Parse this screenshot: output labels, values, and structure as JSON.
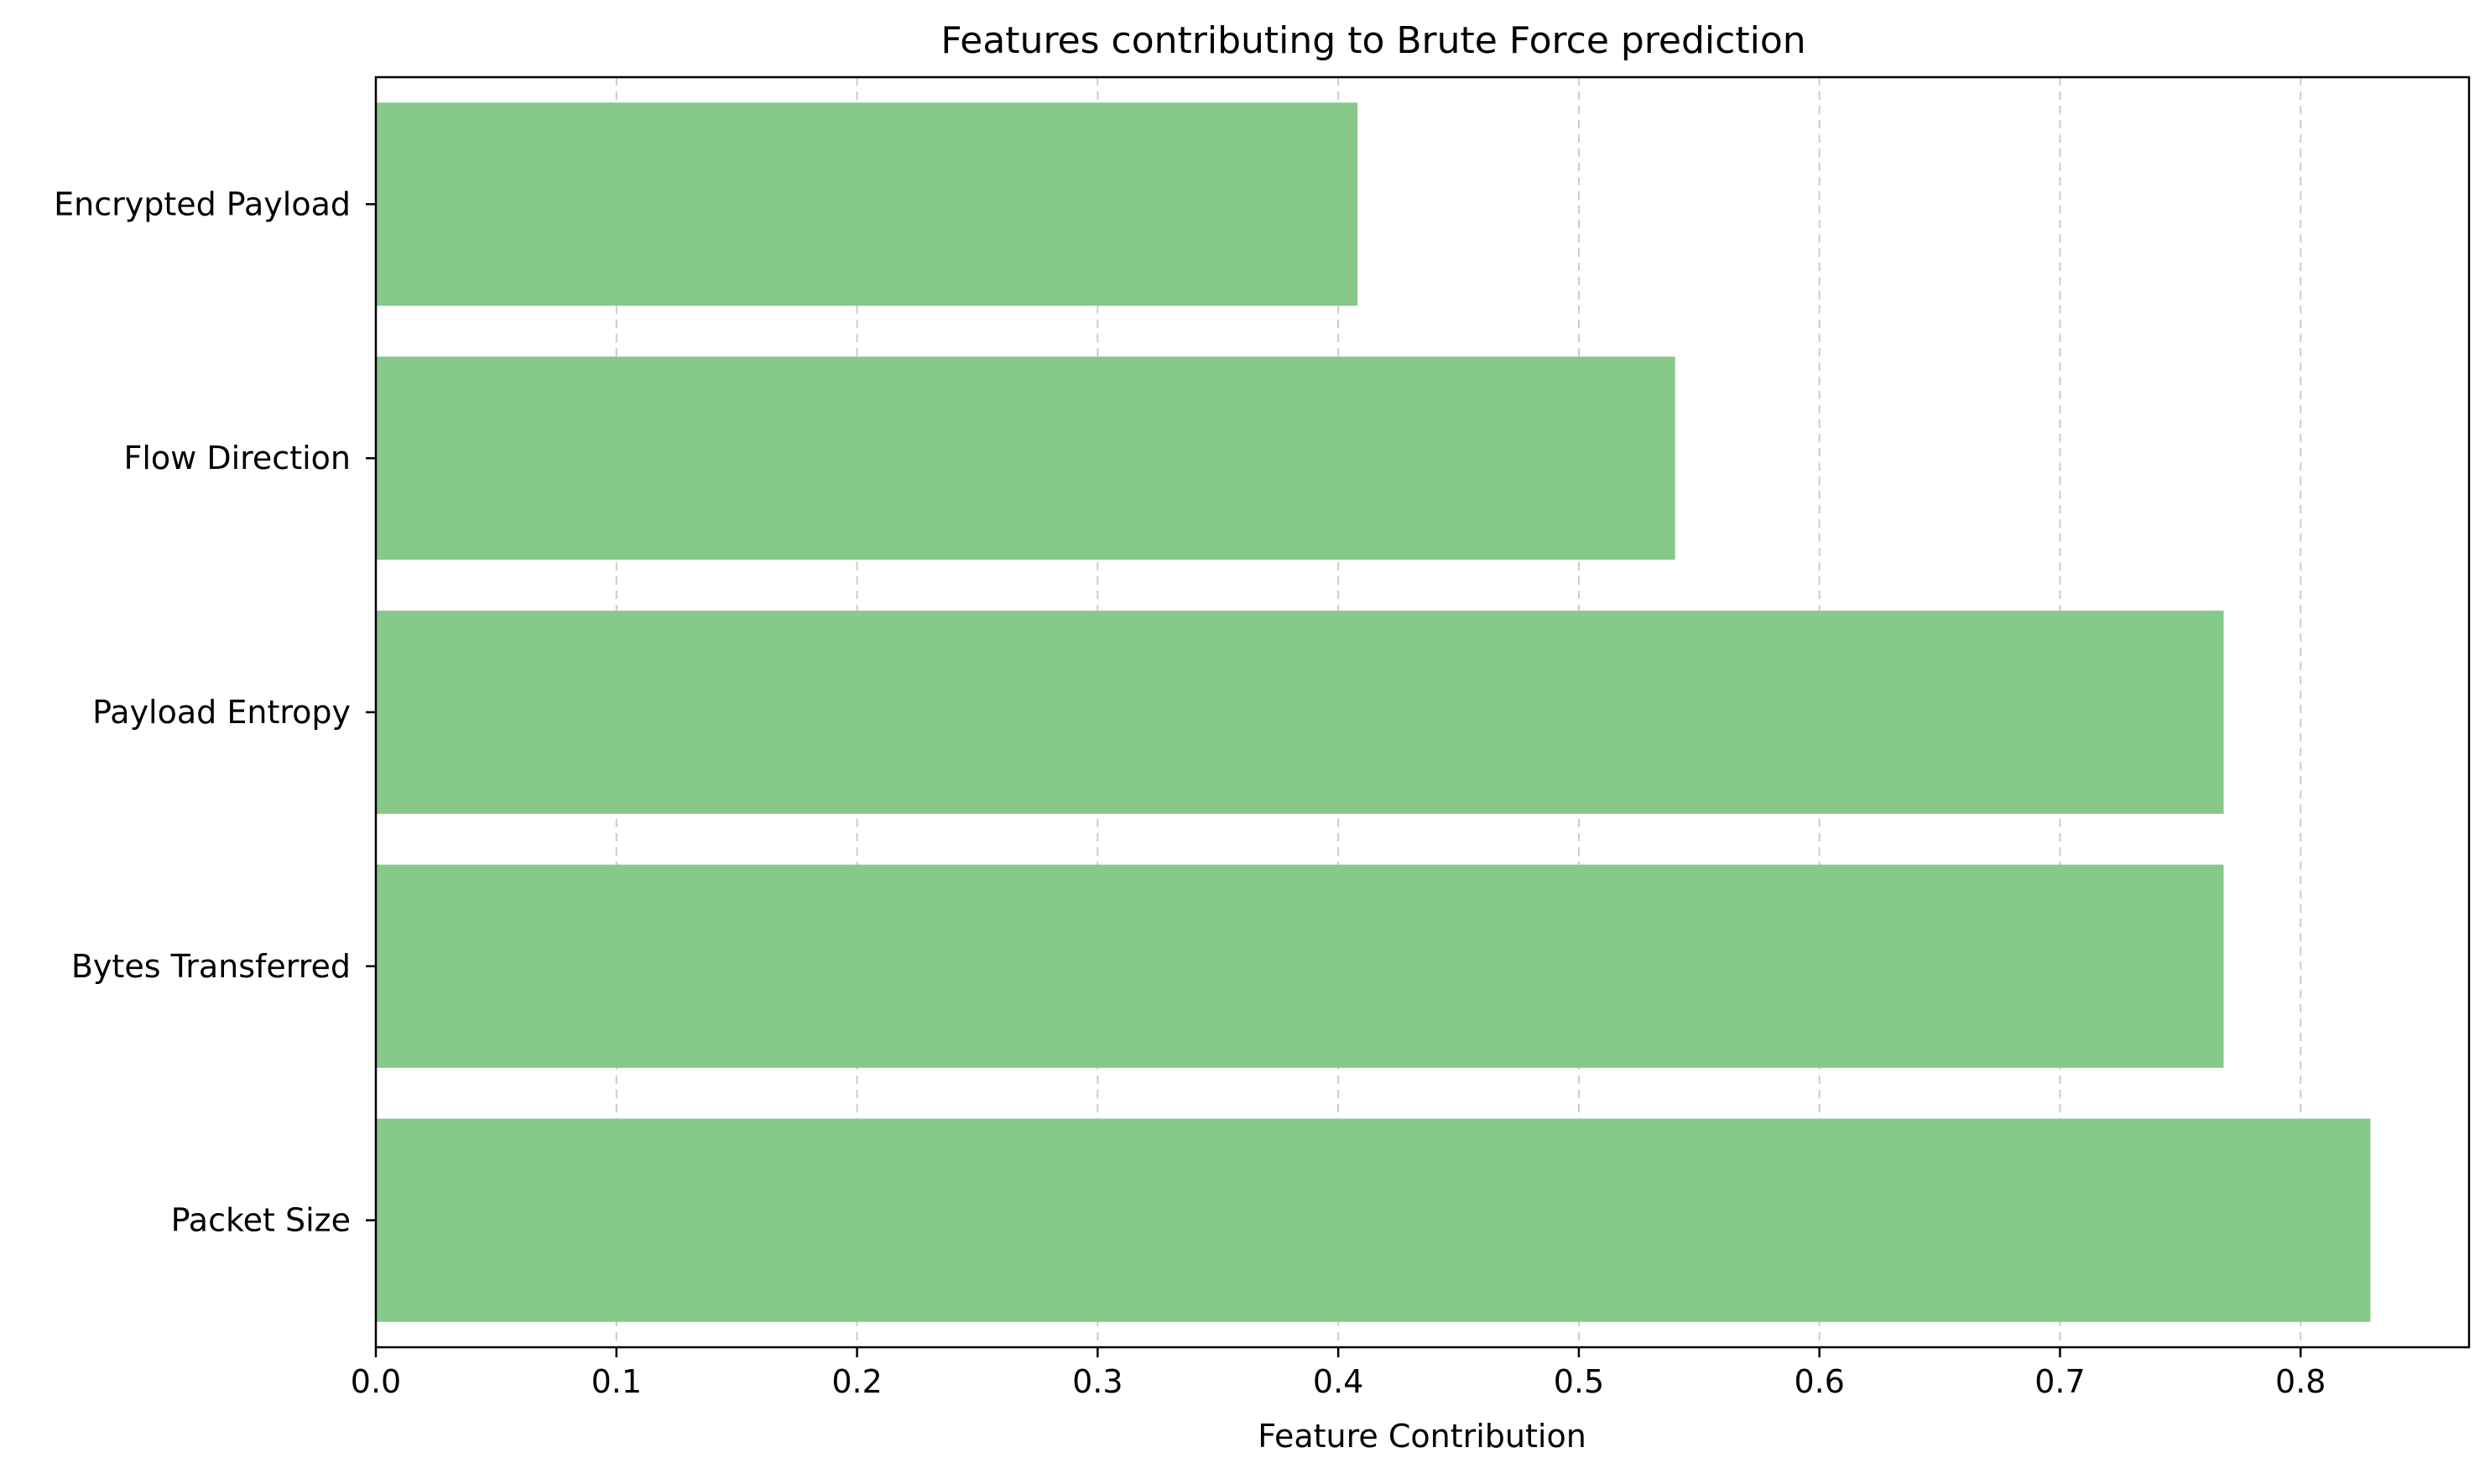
{
  "chart_data": {
    "type": "bar",
    "orientation": "horizontal",
    "title": "Features contributing to Brute Force prediction",
    "xlabel": "Feature Contribution",
    "ylabel": "",
    "categories": [
      "Encrypted Payload",
      "Flow Direction",
      "Payload Entropy",
      "Bytes Transferred",
      "Packet Size"
    ],
    "values": [
      0.408,
      0.54,
      0.768,
      0.768,
      0.829
    ],
    "xlim": [
      0,
      0.87
    ],
    "xticks": [
      0.0,
      0.1,
      0.2,
      0.3,
      0.4,
      0.5,
      0.6,
      0.7,
      0.8
    ],
    "xtick_labels": [
      "0.0",
      "0.1",
      "0.2",
      "0.3",
      "0.4",
      "0.5",
      "0.6",
      "0.7",
      "0.8"
    ],
    "grid": {
      "x": true,
      "y": false,
      "style": "dashed",
      "color": "#cccccc"
    },
    "bar_color": "#86c98a",
    "legend": "none"
  }
}
